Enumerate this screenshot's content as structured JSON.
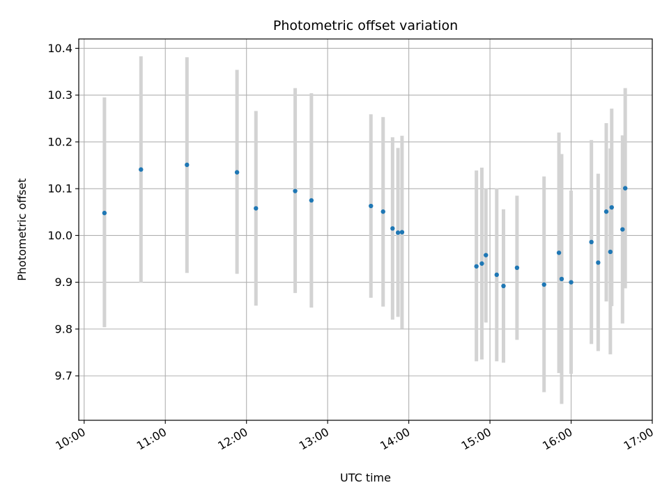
{
  "chart_data": {
    "type": "scatter",
    "title": "Photometric offset variation",
    "xlabel": "UTC time",
    "ylabel": "Photometric offset",
    "xlim": [
      "09:56",
      "17:00"
    ],
    "ylim": [
      9.605,
      10.42
    ],
    "xticks": [
      "10:00",
      "11:00",
      "12:00",
      "13:00",
      "14:00",
      "15:00",
      "16:00",
      "17:00"
    ],
    "yticks": [
      "9.7",
      "9.8",
      "9.9",
      "10.0",
      "10.1",
      "10.2",
      "10.3",
      "10.4"
    ],
    "grid": true,
    "marker_color": "#1f77b4",
    "errorbar_color": "#d3d3d3",
    "points": [
      {
        "x": "10:15",
        "y": 10.048,
        "ylow": 9.804,
        "yhigh": 10.295
      },
      {
        "x": "10:42",
        "y": 10.141,
        "ylow": 9.899,
        "yhigh": 10.383
      },
      {
        "x": "11:16",
        "y": 10.151,
        "ylow": 9.92,
        "yhigh": 10.381
      },
      {
        "x": "11:53",
        "y": 10.135,
        "ylow": 9.918,
        "yhigh": 10.354
      },
      {
        "x": "12:07",
        "y": 10.058,
        "ylow": 9.85,
        "yhigh": 10.266
      },
      {
        "x": "12:36",
        "y": 10.095,
        "ylow": 9.877,
        "yhigh": 10.315
      },
      {
        "x": "12:48",
        "y": 10.075,
        "ylow": 9.846,
        "yhigh": 10.304
      },
      {
        "x": "13:32",
        "y": 10.063,
        "ylow": 9.867,
        "yhigh": 10.259
      },
      {
        "x": "13:41",
        "y": 10.051,
        "ylow": 9.848,
        "yhigh": 10.253
      },
      {
        "x": "13:48",
        "y": 10.015,
        "ylow": 9.82,
        "yhigh": 10.21
      },
      {
        "x": "13:52",
        "y": 10.006,
        "ylow": 9.826,
        "yhigh": 10.187
      },
      {
        "x": "13:55",
        "y": 10.007,
        "ylow": 9.801,
        "yhigh": 10.213
      },
      {
        "x": "14:50",
        "y": 9.934,
        "ylow": 9.731,
        "yhigh": 10.139
      },
      {
        "x": "14:54",
        "y": 9.94,
        "ylow": 9.735,
        "yhigh": 10.145
      },
      {
        "x": "14:57",
        "y": 9.958,
        "ylow": 9.814,
        "yhigh": 10.101
      },
      {
        "x": "15:05",
        "y": 9.916,
        "ylow": 9.731,
        "yhigh": 10.101
      },
      {
        "x": "15:10",
        "y": 9.892,
        "ylow": 9.728,
        "yhigh": 10.056
      },
      {
        "x": "15:20",
        "y": 9.931,
        "ylow": 9.777,
        "yhigh": 10.085
      },
      {
        "x": "15:40",
        "y": 9.895,
        "ylow": 9.665,
        "yhigh": 10.126
      },
      {
        "x": "15:51",
        "y": 9.963,
        "ylow": 9.706,
        "yhigh": 10.22
      },
      {
        "x": "15:53",
        "y": 9.907,
        "ylow": 9.64,
        "yhigh": 10.174
      },
      {
        "x": "16:00",
        "y": 9.9,
        "ylow": 9.704,
        "yhigh": 10.096
      },
      {
        "x": "16:15",
        "y": 9.986,
        "ylow": 9.768,
        "yhigh": 10.204
      },
      {
        "x": "16:20",
        "y": 9.942,
        "ylow": 9.753,
        "yhigh": 10.132
      },
      {
        "x": "16:26",
        "y": 10.051,
        "ylow": 9.859,
        "yhigh": 10.24
      },
      {
        "x": "16:29",
        "y": 9.965,
        "ylow": 9.746,
        "yhigh": 10.186
      },
      {
        "x": "16:30",
        "y": 10.06,
        "ylow": 9.849,
        "yhigh": 10.271
      },
      {
        "x": "16:38",
        "y": 10.013,
        "ylow": 9.812,
        "yhigh": 10.214
      },
      {
        "x": "16:40",
        "y": 10.101,
        "ylow": 9.887,
        "yhigh": 10.315
      }
    ]
  }
}
